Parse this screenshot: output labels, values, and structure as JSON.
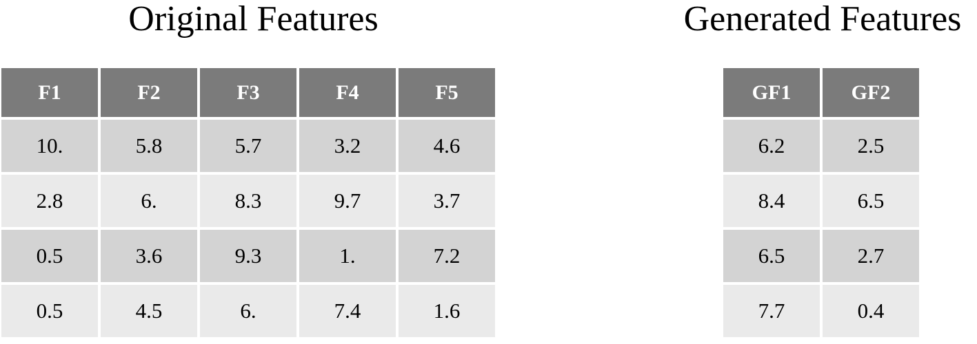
{
  "original": {
    "title": "Original Features",
    "columns": [
      "F1",
      "F2",
      "F3",
      "F4",
      "F5"
    ],
    "rows": [
      [
        "10.",
        "5.8",
        "5.7",
        "3.2",
        "4.6"
      ],
      [
        "2.8",
        "6.",
        "8.3",
        "9.7",
        "3.7"
      ],
      [
        "0.5",
        "3.6",
        "9.3",
        "1.",
        "7.2"
      ],
      [
        "0.5",
        "4.5",
        "6.",
        "7.4",
        "1.6"
      ]
    ]
  },
  "generated": {
    "title": "Generated Features",
    "columns": [
      "GF1",
      "GF2"
    ],
    "rows": [
      [
        "6.2",
        "2.5"
      ],
      [
        "8.4",
        "6.5"
      ],
      [
        "6.5",
        "2.7"
      ],
      [
        "7.7",
        "0.4"
      ]
    ]
  },
  "colors": {
    "header_bg": "#7b7b7b",
    "row_dark": "#d3d3d3",
    "row_light": "#eaeaea"
  }
}
